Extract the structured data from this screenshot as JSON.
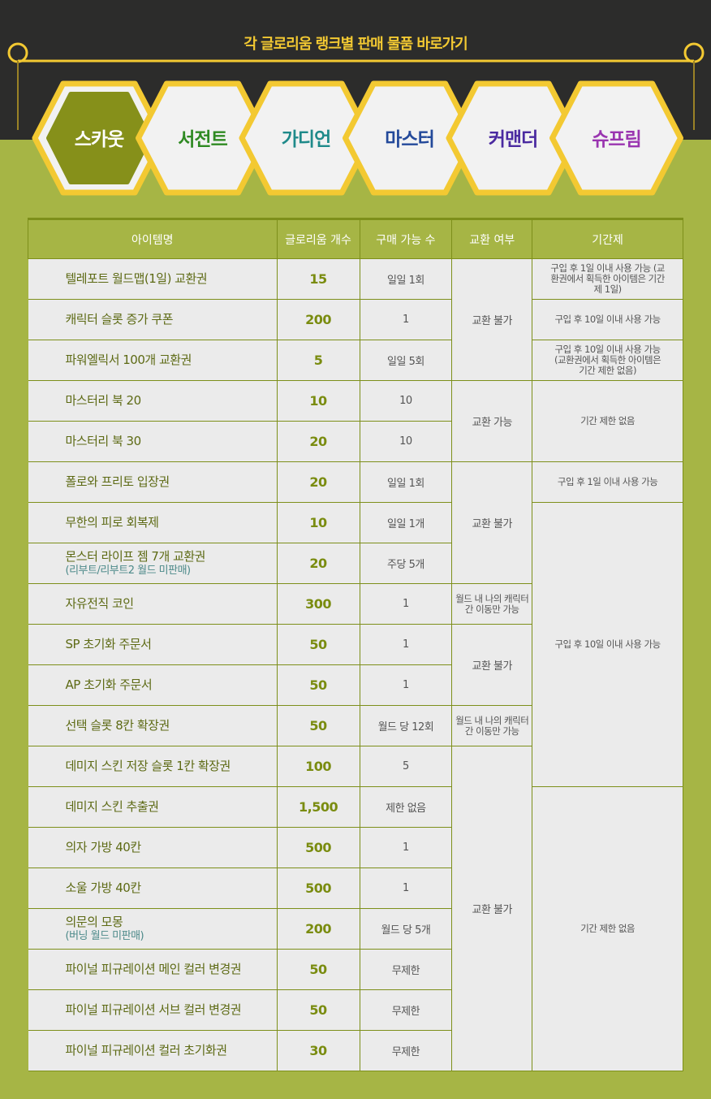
{
  "header": {
    "title": "각 글로리움 랭크별 판매 물품 바로가기"
  },
  "tabs": [
    {
      "label": "스카웃",
      "color": "#ffffff",
      "active": true
    },
    {
      "label": "서전트",
      "color": "#2f8a23"
    },
    {
      "label": "가디언",
      "color": "#1f8a8a"
    },
    {
      "label": "마스터",
      "color": "#23499a"
    },
    {
      "label": "커맨더",
      "color": "#4a2aa0"
    },
    {
      "label": "슈프림",
      "color": "#9a35b0"
    }
  ],
  "colors": {
    "background": "#a6b545",
    "active_tab": "#86901a",
    "gold": "#f3c932",
    "border": "#7d8f1a"
  },
  "table": {
    "headers": [
      "아이템명",
      "글로리움 개수",
      "구매 가능 수",
      "교환 여부",
      "기간제"
    ],
    "rows": [
      {
        "name": "텔레포트 월드맵(1일) 교환권",
        "count": "15",
        "limit": "일일 1회"
      },
      {
        "name": "캐릭터 슬롯 증가 쿠폰",
        "count": "200",
        "limit": "1"
      },
      {
        "name": "파워엘릭서 100개 교환권",
        "count": "5",
        "limit": "일일 5회"
      },
      {
        "name": "마스터리 북 20",
        "count": "10",
        "limit": "10"
      },
      {
        "name": "마스터리 북 30",
        "count": "20",
        "limit": "10"
      },
      {
        "name": "폴로와 프리토 입장권",
        "count": "20",
        "limit": "일일 1회"
      },
      {
        "name": "무한의 피로 회복제",
        "count": "10",
        "limit": "일일 1개"
      },
      {
        "name": "몬스터 라이프 젬 7개 교환권",
        "note": "(리부트/리부트2 월드 미판매)",
        "count": "20",
        "limit": "주당 5개"
      },
      {
        "name": "자유전직 코인",
        "count": "300",
        "limit": "1"
      },
      {
        "name": "SP 초기화 주문서",
        "count": "50",
        "limit": "1"
      },
      {
        "name": "AP 초기화 주문서",
        "count": "50",
        "limit": "1"
      },
      {
        "name": "선택 슬롯 8칸 확장권",
        "count": "50",
        "limit": "월드 당 12회"
      },
      {
        "name": "데미지 스킨 저장 슬롯 1칸 확장권",
        "count": "100",
        "limit": "5"
      },
      {
        "name": "데미지 스킨 추출권",
        "count": "1,500",
        "limit": "제한 없음"
      },
      {
        "name": "의자 가방 40칸",
        "count": "500",
        "limit": "1"
      },
      {
        "name": "소울 가방 40칸",
        "count": "500",
        "limit": "1"
      },
      {
        "name": "의문의 모몽",
        "note": "(버닝 월드 미판매)",
        "count": "200",
        "limit": "월드 당 5개"
      },
      {
        "name": "파이널 피규레이션 메인 컬러 변경권",
        "count": "50",
        "limit": "무제한"
      },
      {
        "name": "파이널 피규레이션 서브 컬러 변경권",
        "count": "50",
        "limit": "무제한"
      },
      {
        "name": "파이널 피규레이션 컬러 초기화권",
        "count": "30",
        "limit": "무제한"
      }
    ],
    "exchange": [
      {
        "start": 0,
        "span": 3,
        "text": "교환 불가"
      },
      {
        "start": 3,
        "span": 2,
        "text": "교환 가능"
      },
      {
        "start": 5,
        "span": 3,
        "text": "교환 불가"
      },
      {
        "start": 8,
        "span": 1,
        "text": "월드 내 나의 캐릭터간 이동만 가능"
      },
      {
        "start": 9,
        "span": 2,
        "text": "교환 불가"
      },
      {
        "start": 11,
        "span": 1,
        "text": "월드 내 나의 캐릭터간 이동만 가능"
      },
      {
        "start": 12,
        "span": 8,
        "text": "교환 불가"
      }
    ],
    "period": [
      {
        "start": 0,
        "span": 1,
        "text": "구입 후 1일 이내 사용 가능 (교환권에서 획득한 아이템은 기간제 1일)"
      },
      {
        "start": 1,
        "span": 1,
        "text": "구입 후 10일 이내 사용 가능"
      },
      {
        "start": 2,
        "span": 1,
        "text": "구입 후 10일 이내 사용 가능 (교환권에서 획득한 아이템은 기간 제한 없음)"
      },
      {
        "start": 3,
        "span": 2,
        "text": "기간 제한 없음"
      },
      {
        "start": 5,
        "span": 1,
        "text": "구입 후 1일 이내 사용 가능"
      },
      {
        "start": 6,
        "span": 7,
        "text": "구입 후 10일 이내 사용 가능"
      },
      {
        "start": 13,
        "span": 7,
        "text": "기간 제한 없음"
      }
    ]
  }
}
